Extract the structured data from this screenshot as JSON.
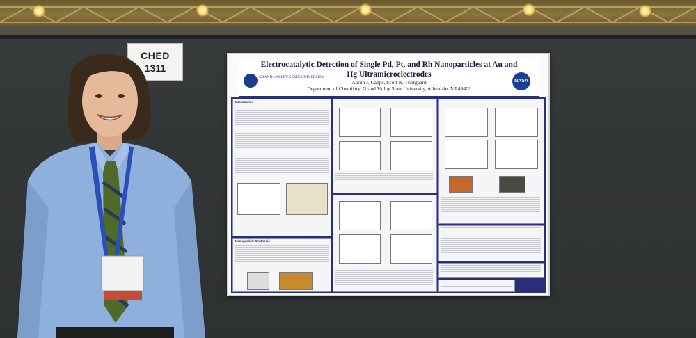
{
  "sign": {
    "line1": "CHED",
    "line2": "1311"
  },
  "poster": {
    "title": "Electrocatalytic Detection of Single Pd, Pt, and Rh Nanoparticles at Au and Hg Ultramicroelectrodes",
    "authors": "Aaron J. Capps, Scott N. Thorgaard",
    "affiliation": "Department of Chemistry, Grand Valley State University, Allendale, MI 49401",
    "logo_text": "GRAND VALLEY STATE UNIVERSITY",
    "nasa_logo": "NASA",
    "sections": [
      "Introduction",
      "Nanoparticle Synthesis"
    ]
  },
  "colors": {
    "poster_navy": "#2b2f7a",
    "wall": "#333637",
    "shirt": "#8fb0dc",
    "lanyard": "#2a50b8"
  }
}
